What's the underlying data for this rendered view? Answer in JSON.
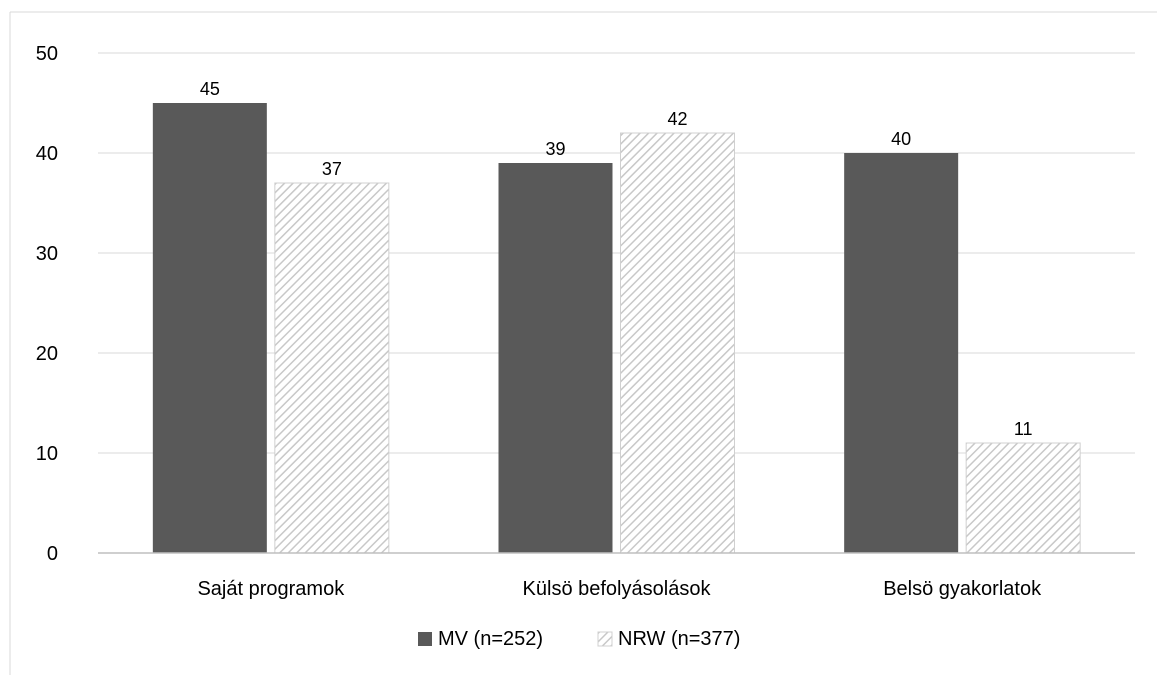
{
  "chart_data": {
    "type": "bar",
    "categories": [
      "Saját programok",
      "Külsö befolyásolások",
      "Belsö gyakorlatok"
    ],
    "series": [
      {
        "name": "MV (n=252)",
        "values": [
          45,
          39,
          40
        ],
        "color": "#595959",
        "fill": "solid"
      },
      {
        "name": "NRW (n=377)",
        "values": [
          37,
          42,
          11
        ],
        "color": "#d9d9d9",
        "fill": "diagonal-hatch"
      }
    ],
    "title": "",
    "xlabel": "",
    "ylabel": "",
    "ylim": [
      0,
      50
    ],
    "yticks": [
      0,
      10,
      20,
      30,
      40,
      50
    ],
    "grid": true,
    "legend_position": "bottom",
    "data_labels": true
  }
}
